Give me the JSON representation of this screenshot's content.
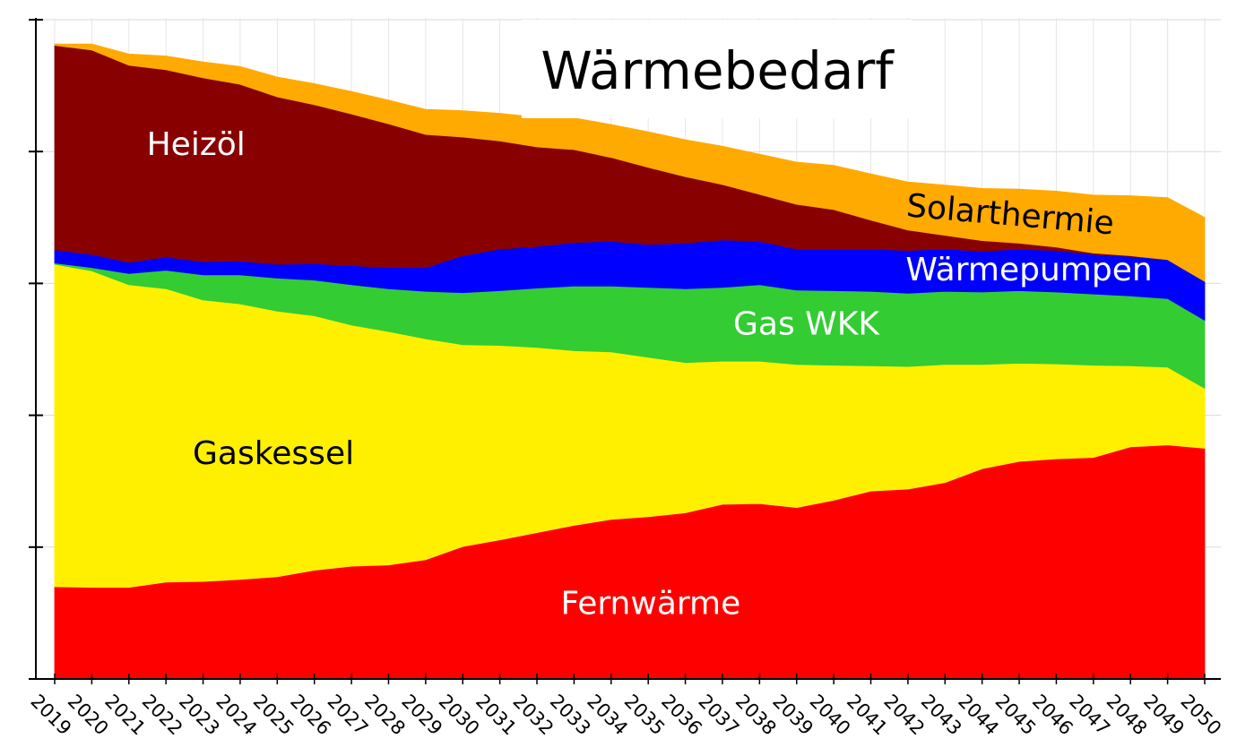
{
  "chart_data": {
    "type": "area",
    "stacked": true,
    "title": "Wärmebedarf",
    "x": [
      2019,
      2020,
      2021,
      2022,
      2023,
      2024,
      2025,
      2026,
      2027,
      2028,
      2029,
      2030,
      2031,
      2032,
      2033,
      2034,
      2035,
      2036,
      2037,
      2038,
      2039,
      2040,
      2041,
      2042,
      2043,
      2044,
      2045,
      2046,
      2047,
      2048,
      2049,
      2050
    ],
    "x_tick_labels": [
      "2019",
      "2020",
      "2021",
      "2022",
      "2023",
      "2024",
      "2025",
      "2026",
      "2027",
      "2028",
      "2029",
      "2030",
      "2031",
      "2032",
      "2033",
      "2034",
      "2035",
      "2036",
      "2037",
      "2038",
      "2039",
      "2040",
      "2041",
      "2042",
      "2043",
      "2044",
      "2045",
      "2046",
      "2047",
      "2048",
      "2049",
      "2050"
    ],
    "xlabel": "",
    "ylabel": "",
    "ylim": [
      0,
      100
    ],
    "y_ticks": [
      0,
      20,
      40,
      60,
      80,
      100
    ],
    "y_tick_labels_shown": false,
    "grid": true,
    "legend": "none",
    "series": [
      {
        "name": "Fernwärme",
        "color": "#ff0000",
        "label_color": "#ffffff",
        "values": [
          14.0,
          13.9,
          13.9,
          14.7,
          14.8,
          15.1,
          15.5,
          16.5,
          17.1,
          17.3,
          18.1,
          20.1,
          21.1,
          22.2,
          23.3,
          24.2,
          24.6,
          25.2,
          26.5,
          26.6,
          26.0,
          27.1,
          28.5,
          28.8,
          29.8,
          31.9,
          33.0,
          33.4,
          33.6,
          35.2,
          35.5,
          35.0
        ]
      },
      {
        "name": "Gaskessel",
        "color": "#fff000",
        "label_color": "#000000",
        "values": [
          48.9,
          48.0,
          45.9,
          44.5,
          42.7,
          41.8,
          40.3,
          38.6,
          36.6,
          35.4,
          33.5,
          30.6,
          29.5,
          28.1,
          26.5,
          25.4,
          24.2,
          22.8,
          21.7,
          21.6,
          21.7,
          20.5,
          19.0,
          18.6,
          17.9,
          15.8,
          14.9,
          14.4,
          14.0,
          12.3,
          11.8,
          9.1
        ]
      },
      {
        "name": "Gas WKK",
        "color": "#33cc33",
        "label_color": "#ffffff",
        "values": [
          0.2,
          0.5,
          1.7,
          2.8,
          3.8,
          4.4,
          5.0,
          5.4,
          6.1,
          6.5,
          7.2,
          7.9,
          8.3,
          9.0,
          9.8,
          10.0,
          10.6,
          11.2,
          11.2,
          11.6,
          11.3,
          11.3,
          11.3,
          11.1,
          11.1,
          11.0,
          11.0,
          10.9,
          10.8,
          10.6,
          10.4,
          10.3
        ]
      },
      {
        "name": "Wärmepumpen",
        "color": "#0000ff",
        "label_color": "#ffffff",
        "values": [
          2.0,
          2.0,
          1.7,
          2.0,
          2.0,
          2.1,
          2.1,
          2.5,
          2.9,
          3.2,
          3.6,
          5.6,
          6.3,
          6.3,
          6.6,
          6.8,
          6.5,
          6.9,
          7.2,
          6.6,
          6.2,
          6.3,
          6.4,
          6.5,
          6.4,
          6.2,
          6.3,
          6.3,
          6.0,
          6.0,
          5.9,
          5.9
        ]
      },
      {
        "name": "Heizöl",
        "color": "#880000",
        "label_color": "#ffffff",
        "values": [
          31.0,
          31.0,
          29.9,
          28.4,
          27.9,
          26.8,
          25.4,
          24.1,
          23.0,
          21.8,
          20.2,
          18.0,
          16.4,
          15.1,
          14.1,
          12.7,
          11.7,
          10.1,
          8.4,
          7.1,
          6.8,
          6.0,
          4.4,
          3.1,
          2.1,
          1.6,
          0.9,
          0.5,
          0.2,
          0.1,
          0.0,
          0.0
        ]
      },
      {
        "name": "Solarthermie",
        "color": "#ffaa00",
        "label_color": "#000000",
        "values": [
          0.2,
          0.9,
          1.7,
          2.1,
          2.4,
          2.7,
          3.0,
          3.2,
          3.4,
          3.6,
          3.8,
          4.0,
          4.2,
          4.5,
          4.8,
          5.0,
          5.4,
          5.6,
          5.8,
          6.1,
          6.4,
          6.7,
          7.0,
          7.3,
          7.6,
          7.9,
          8.2,
          8.5,
          8.8,
          9.1,
          9.4,
          9.7
        ]
      }
    ]
  }
}
